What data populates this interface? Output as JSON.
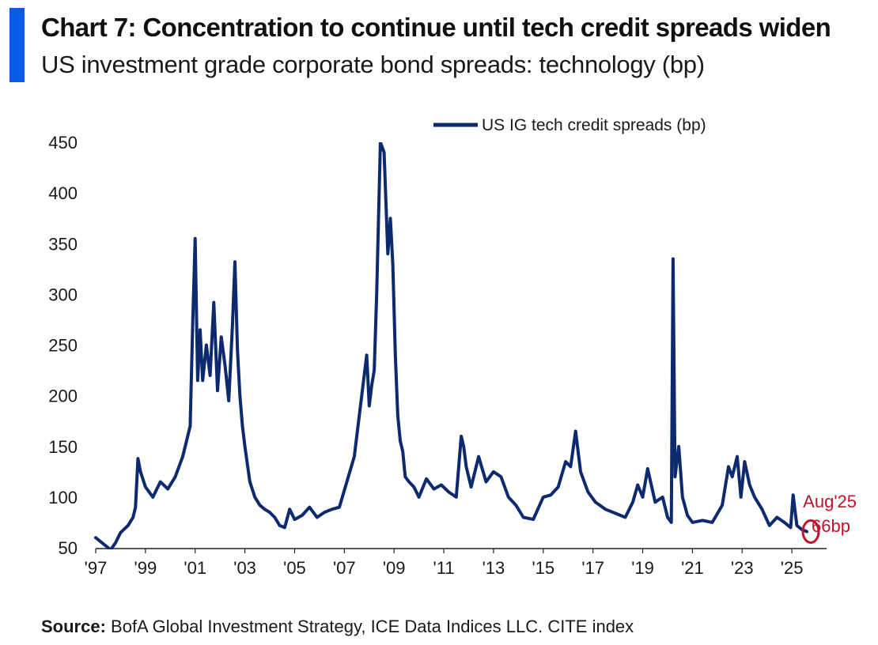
{
  "header": {
    "title": "Chart 7: Concentration to continue until tech credit spreads widen",
    "subtitle": "US investment grade corporate bond spreads: technology (bp)"
  },
  "footer": {
    "source_label": "Source:",
    "source_text": " BofA Global Investment Strategy, ICE Data Indices LLC. CITE index"
  },
  "colors": {
    "series": "#0e2a6e",
    "accent": "#0a5ae6",
    "annotation": "#c0122a"
  },
  "chart_data": {
    "type": "line",
    "title": "",
    "xlabel": "",
    "ylabel": "",
    "ylim": [
      50,
      450
    ],
    "xlim": [
      1997.0,
      2026.3
    ],
    "yticks": [
      "50",
      "100",
      "150",
      "200",
      "250",
      "300",
      "350",
      "400",
      "450"
    ],
    "xticks": [
      "'97",
      "'99",
      "'01",
      "'03",
      "'05",
      "'07",
      "'09",
      "'11",
      "'13",
      "'15",
      "'17",
      "'19",
      "'21",
      "'23",
      "'25"
    ],
    "grid": false,
    "legend": "top-right",
    "series": [
      {
        "name": "US IG tech credit spreads (bp)",
        "x": [
          1997.0,
          1997.6,
          1997.8,
          1998.0,
          1998.3,
          1998.5,
          1998.6,
          1998.7,
          1998.8,
          1999.0,
          1999.3,
          1999.6,
          1999.9,
          2000.2,
          2000.5,
          2000.8,
          2000.9,
          2001.0,
          2001.1,
          2001.2,
          2001.3,
          2001.45,
          2001.6,
          2001.75,
          2001.9,
          2002.05,
          2002.2,
          2002.35,
          2002.5,
          2002.6,
          2002.7,
          2002.8,
          2002.9,
          2003.0,
          2003.2,
          2003.4,
          2003.6,
          2003.8,
          2004.0,
          2004.2,
          2004.4,
          2004.6,
          2004.8,
          2005.0,
          2005.3,
          2005.6,
          2005.9,
          2006.2,
          2006.5,
          2006.8,
          2007.1,
          2007.4,
          2007.7,
          2007.9,
          2008.0,
          2008.1,
          2008.2,
          2008.3,
          2008.45,
          2008.6,
          2008.75,
          2008.85,
          2008.95,
          2009.05,
          2009.15,
          2009.25,
          2009.35,
          2009.45,
          2009.6,
          2009.8,
          2010.0,
          2010.3,
          2010.6,
          2010.9,
          2011.2,
          2011.5,
          2011.7,
          2011.8,
          2011.9,
          2012.1,
          2012.4,
          2012.7,
          2013.0,
          2013.3,
          2013.6,
          2013.9,
          2014.2,
          2014.6,
          2015.0,
          2015.3,
          2015.6,
          2015.9,
          2016.1,
          2016.3,
          2016.5,
          2016.8,
          2017.1,
          2017.5,
          2017.9,
          2018.3,
          2018.6,
          2018.8,
          2019.0,
          2019.2,
          2019.5,
          2019.8,
          2020.0,
          2020.15,
          2020.22,
          2020.3,
          2020.45,
          2020.6,
          2020.8,
          2021.0,
          2021.4,
          2021.8,
          2022.2,
          2022.45,
          2022.6,
          2022.8,
          2022.95,
          2023.1,
          2023.3,
          2023.5,
          2023.8,
          2024.1,
          2024.4,
          2024.7,
          2024.95,
          2025.05,
          2025.2,
          2025.4,
          2025.6
        ],
        "y": [
          60,
          48,
          55,
          65,
          72,
          80,
          90,
          138,
          125,
          110,
          100,
          115,
          108,
          120,
          140,
          170,
          270,
          355,
          215,
          265,
          215,
          250,
          220,
          292,
          205,
          258,
          230,
          195,
          270,
          332,
          245,
          200,
          170,
          150,
          115,
          100,
          92,
          88,
          85,
          80,
          72,
          70,
          88,
          78,
          82,
          90,
          80,
          85,
          88,
          90,
          115,
          140,
          200,
          240,
          190,
          210,
          225,
          300,
          450,
          440,
          340,
          375,
          330,
          240,
          180,
          155,
          145,
          120,
          115,
          110,
          100,
          118,
          108,
          112,
          105,
          100,
          160,
          150,
          130,
          110,
          140,
          115,
          125,
          120,
          100,
          92,
          80,
          78,
          100,
          102,
          110,
          135,
          130,
          165,
          125,
          105,
          95,
          88,
          84,
          80,
          95,
          112,
          100,
          128,
          95,
          100,
          80,
          75,
          335,
          120,
          150,
          100,
          82,
          75,
          77,
          75,
          92,
          130,
          120,
          140,
          100,
          135,
          112,
          100,
          88,
          72,
          80,
          75,
          70,
          102,
          72,
          68,
          66
        ]
      }
    ],
    "annotations": [
      {
        "text": "Aug'25",
        "x": 2025.6,
        "y": 66
      },
      {
        "text": "66bp",
        "x": 2025.6,
        "y": 66
      }
    ]
  }
}
